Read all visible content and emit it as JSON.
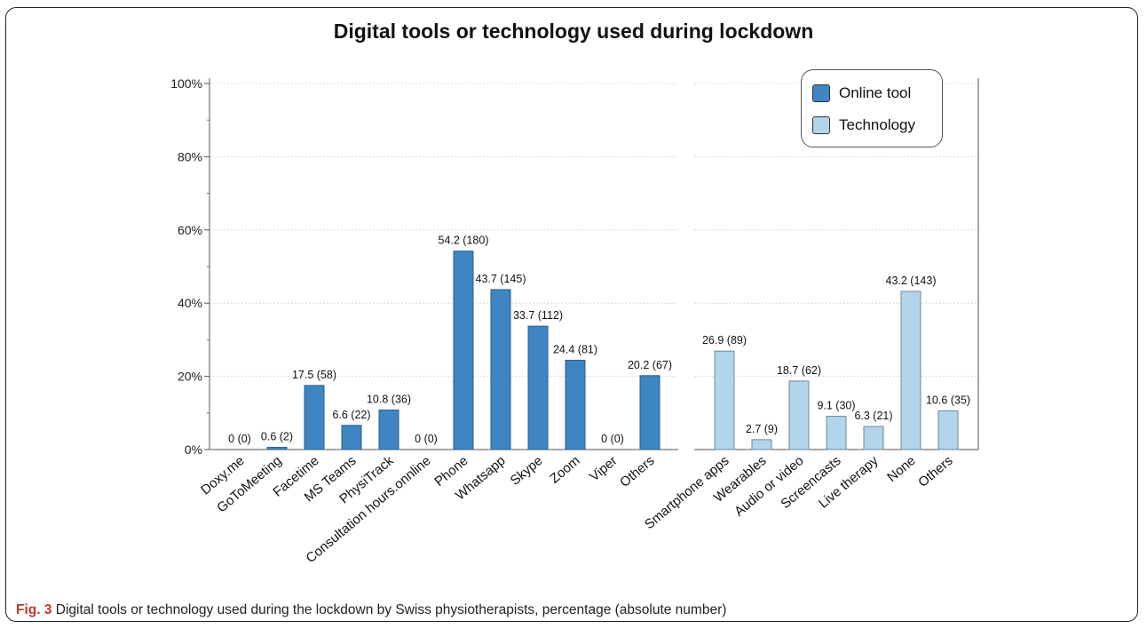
{
  "chart_data": {
    "type": "bar",
    "title": "Digital tools or technology used during lockdown",
    "ylim": [
      0,
      100
    ],
    "yticks": [
      "0%",
      "20%",
      "40%",
      "60%",
      "80%",
      "100%"
    ],
    "grid": true,
    "legend_position": "top-right",
    "series": [
      {
        "name": "Online tool",
        "color": "#3d86c2",
        "categories": [
          "Doxy.me",
          "GoToMeeting",
          "Facetime",
          "MS Teams",
          "PhysiTrack",
          "Consultation hours.onnline",
          "Phone",
          "Whatsapp",
          "Skype",
          "Zoom",
          "Viper",
          "Others"
        ],
        "values": [
          0,
          0.6,
          17.5,
          6.6,
          10.8,
          0,
          54.2,
          43.7,
          33.7,
          24.4,
          0,
          20.2
        ],
        "labels": [
          "0 (0)",
          "0.6 (2)",
          "17.5 (58)",
          "6.6 (22)",
          "10.8 (36)",
          "0 (0)",
          "54.2 (180)",
          "43.7 (145)",
          "33.7 (112)",
          "24.4 (81)",
          "0 (0)",
          "20.2 (67)"
        ]
      },
      {
        "name": "Technology",
        "color": "#b3d5ea",
        "categories": [
          "Smartphone apps",
          "Wearables",
          "Audio or video",
          "Screencasts",
          "Live therapy",
          "None",
          "Others"
        ],
        "values": [
          26.9,
          2.7,
          18.7,
          9.1,
          6.3,
          43.2,
          10.6
        ],
        "labels": [
          "26.9 (89)",
          "2.7 (9)",
          "18.7 (62)",
          "9.1 (30)",
          "6.3 (21)",
          "43.2 (143)",
          "10.6 (35)"
        ]
      }
    ]
  },
  "caption": {
    "label": "Fig. 3",
    "text": " Digital tools or technology used during the lockdown by Swiss physiotherapists, percentage (absolute number)"
  }
}
